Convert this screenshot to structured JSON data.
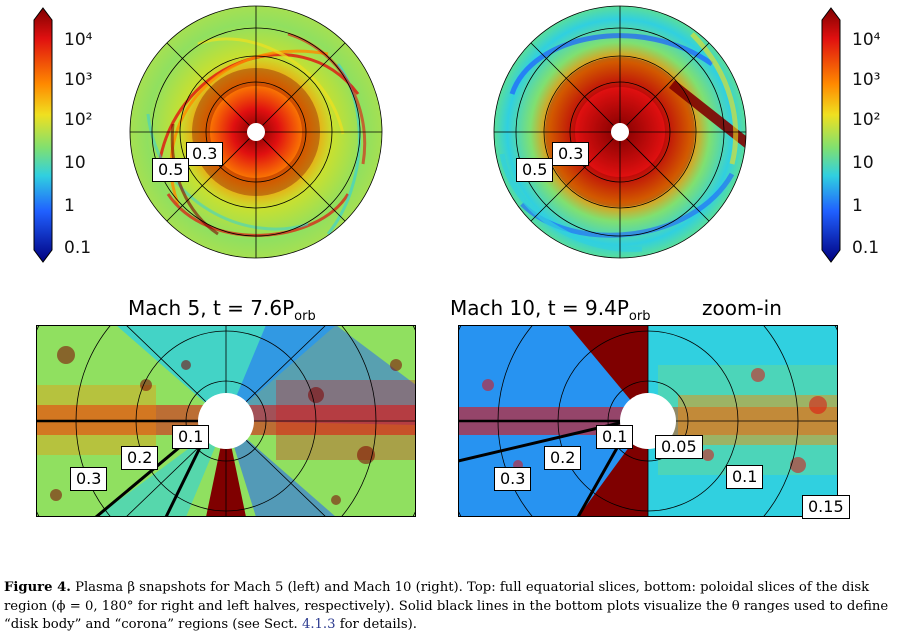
{
  "figure": {
    "colorbar": {
      "ticks": [
        "10⁴",
        "10³",
        "10²",
        "10",
        "1",
        "0.1"
      ],
      "tick_values": [
        10000,
        1000,
        100,
        10,
        1,
        0.1
      ],
      "scale": "log",
      "colormap": "jet"
    },
    "top_left": {
      "labels": [
        "0.3",
        "0.5"
      ]
    },
    "top_right": {
      "labels": [
        "0.3",
        "0.5"
      ]
    },
    "bottom_left": {
      "title": "Mach 5, t = 7.6P",
      "title_sub": "orb",
      "labels": [
        "0.1",
        "0.2",
        "0.3"
      ]
    },
    "bottom_right": {
      "title": "Mach 10, t = 9.4P",
      "title_sub": "orb",
      "zoom_label": "zoom-in",
      "labels_left": [
        "0.1",
        "0.2",
        "0.3"
      ],
      "labels_right": [
        "0.05",
        "0.1",
        "0.15"
      ]
    }
  },
  "caption": {
    "label": "Figure 4.",
    "text_1": " Plasma β snapshots for Mach 5 (left) and Mach 10 (right). Top: full equatorial slices, bottom: poloidal slices of the disk region (ϕ = 0, 180° for right and left halves, respectively). Solid black lines in the bottom plots visualize the θ ranges used to define “disk body” and “corona” regions (see Sect. ",
    "ref": "4.1.3",
    "text_2": " for details)."
  },
  "colors": {
    "jet_dark_red": "#7f0000",
    "jet_red": "#e01010",
    "jet_orange": "#ff8a00",
    "jet_yellow": "#f0e020",
    "jet_green": "#80e070",
    "jet_cyan": "#30d0e0",
    "jet_blue": "#2060ff",
    "jet_dark_blue": "#00007f"
  }
}
